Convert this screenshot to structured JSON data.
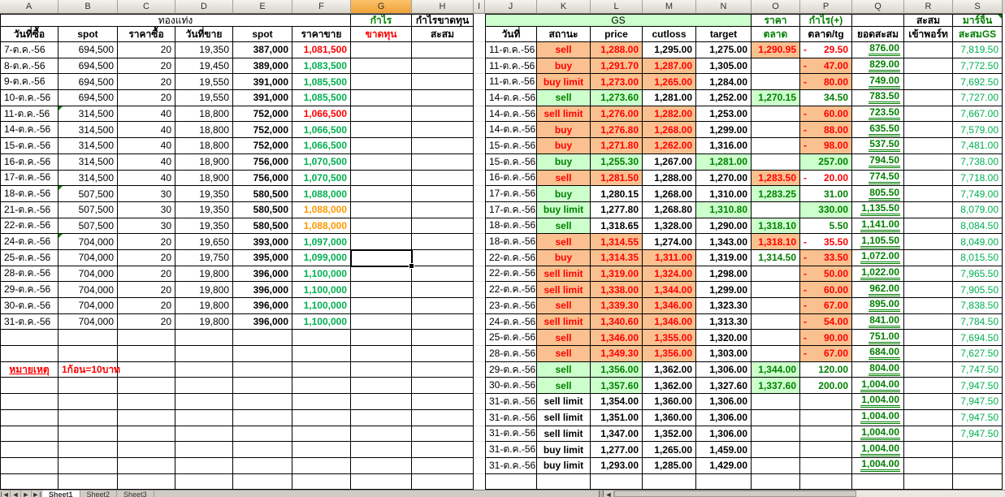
{
  "colors": {
    "cell_orange_bg": "#FAC08F",
    "cell_green_bg": "#CCFFCC",
    "red_text": "#FF0000",
    "dark_green_text": "#008000",
    "medium_green_text": "#00B050",
    "orange_text": "#FF9900",
    "column_header_bg": "#D9D5CD",
    "selected_column_header_bg": "#F2A340"
  },
  "columns": [
    "A",
    "B",
    "C",
    "D",
    "E",
    "F",
    "G",
    "H",
    "I",
    "J",
    "K",
    "L",
    "M",
    "N",
    "O",
    "P",
    "Q",
    "R",
    "S"
  ],
  "selection": {
    "column": "G",
    "row_index": 13
  },
  "header": {
    "left_title": "ทองแท่ง",
    "left_cols": [
      "วันที่ซื้อ",
      "spot",
      "ราคาซื้อ",
      "วันที่ขาย",
      "spot",
      "ราคาขาย"
    ],
    "profit_col": {
      "line1": "กำไร",
      "line2": "ขาดทุน"
    },
    "profit_cum_col": {
      "line1": "กำไรขาดทุน",
      "line2": "สะสม"
    },
    "gs_title": "GS",
    "right_cols": [
      "วันที่",
      "สถานะ",
      "price",
      "cutloss",
      "target"
    ],
    "market_col": {
      "line1": "ราคา",
      "line2": "ตลาด"
    },
    "profit_plus_col": {
      "line1": "กำไร(+)",
      "line2": "ตลาด/tg"
    },
    "cum_col": {
      "line1": "",
      "line2": "ยอดสะสม"
    },
    "port_col": {
      "line1": "สะสม",
      "line2": "เข้าพอร์ท"
    },
    "margin_col": {
      "line1": "มาร์จิ้น",
      "line2": "สะสมGS"
    }
  },
  "note": {
    "label": "หมายเหตุ",
    "text": "1ก้อน=10บาท"
  },
  "left_rows": [
    {
      "a": "7-ต.ค.-56",
      "b": "694,500",
      "c": "20",
      "d": "19,350",
      "e": "387,000",
      "f": "1,081,500",
      "fc": "red",
      "flag": false
    },
    {
      "a": "8-ต.ค.-56",
      "b": "694,500",
      "c": "20",
      "d": "19,450",
      "e": "389,000",
      "f": "1,083,500",
      "fc": "green",
      "flag": false
    },
    {
      "a": "9-ต.ค.-56",
      "b": "694,500",
      "c": "20",
      "d": "19,550",
      "e": "391,000",
      "f": "1,085,500",
      "fc": "green",
      "flag": false
    },
    {
      "a": "10-ต.ค.-56",
      "b": "694,500",
      "c": "20",
      "d": "19,550",
      "e": "391,000",
      "f": "1,085,500",
      "fc": "green",
      "flag": false
    },
    {
      "a": "11-ต.ค.-56",
      "b": "314,500",
      "c": "40",
      "d": "18,800",
      "e": "752,000",
      "f": "1,066,500",
      "fc": "red",
      "flag": true
    },
    {
      "a": "14-ต.ค.-56",
      "b": "314,500",
      "c": "40",
      "d": "18,800",
      "e": "752,000",
      "f": "1,066,500",
      "fc": "green",
      "flag": false
    },
    {
      "a": "15-ต.ค.-56",
      "b": "314,500",
      "c": "40",
      "d": "18,800",
      "e": "752,000",
      "f": "1,066,500",
      "fc": "green",
      "flag": false
    },
    {
      "a": "16-ต.ค.-56",
      "b": "314,500",
      "c": "40",
      "d": "18,900",
      "e": "756,000",
      "f": "1,070,500",
      "fc": "green",
      "flag": false
    },
    {
      "a": "17-ต.ค.-56",
      "b": "314,500",
      "c": "40",
      "d": "18,900",
      "e": "756,000",
      "f": "1,070,500",
      "fc": "green",
      "flag": false
    },
    {
      "a": "18-ต.ค.-56",
      "b": "507,500",
      "c": "30",
      "d": "19,350",
      "e": "580,500",
      "f": "1,088,000",
      "fc": "green",
      "flag": true
    },
    {
      "a": "21-ต.ค.-56",
      "b": "507,500",
      "c": "30",
      "d": "19,350",
      "e": "580,500",
      "f": "1,088,000",
      "fc": "orange",
      "flag": false
    },
    {
      "a": "22-ต.ค.-56",
      "b": "507,500",
      "c": "30",
      "d": "19,350",
      "e": "580,500",
      "f": "1,088,000",
      "fc": "orange",
      "flag": false
    },
    {
      "a": "24-ต.ค.-56",
      "b": "704,000",
      "c": "20",
      "d": "19,650",
      "e": "393,000",
      "f": "1,097,000",
      "fc": "green",
      "flag": true
    },
    {
      "a": "25-ต.ค.-56",
      "b": "704,000",
      "c": "20",
      "d": "19,750",
      "e": "395,000",
      "f": "1,099,000",
      "fc": "green",
      "flag": false
    },
    {
      "a": "28-ต.ค.-56",
      "b": "704,000",
      "c": "20",
      "d": "19,800",
      "e": "396,000",
      "f": "1,100,000",
      "fc": "green",
      "flag": false
    },
    {
      "a": "29-ต.ค.-56",
      "b": "704,000",
      "c": "20",
      "d": "19,800",
      "e": "396,000",
      "f": "1,100,000",
      "fc": "green",
      "flag": false
    },
    {
      "a": "30-ต.ค.-56",
      "b": "704,000",
      "c": "20",
      "d": "19,800",
      "e": "396,000",
      "f": "1,100,000",
      "fc": "green",
      "flag": false
    },
    {
      "a": "31-ต.ค.-56",
      "b": "704,000",
      "c": "20",
      "d": "19,800",
      "e": "396,000",
      "f": "1,100,000",
      "fc": "green",
      "flag": false
    }
  ],
  "right_rows": [
    {
      "d": "11-ต.ค.-56",
      "st": "sell",
      "sts": "ro",
      "p": "1,288.00",
      "ps": "ro",
      "c": "1,295.00",
      "cs": "k",
      "t": "1,275.00",
      "ts": "k",
      "m": "1,290.95",
      "ms": "ro",
      "pl": "29.50",
      "pln": true,
      "pls": "rw",
      "q": "876.00",
      "s": "7,819.50"
    },
    {
      "d": "11-ต.ค.-56",
      "st": "buy",
      "sts": "ro",
      "p": "1,291.70",
      "ps": "ro",
      "c": "1,287.00",
      "cs": "ro",
      "t": "1,305.00",
      "ts": "k",
      "m": "",
      "ms": "",
      "pl": "47.00",
      "pln": true,
      "pls": "ro",
      "q": "829.00",
      "s": "7,772.50"
    },
    {
      "d": "11-ต.ค.-56",
      "st": "buy limit",
      "sts": "ro",
      "p": "1,273.00",
      "ps": "ro",
      "c": "1,265.00",
      "cs": "ro",
      "t": "1,284.00",
      "ts": "k",
      "m": "",
      "ms": "",
      "pl": "80.00",
      "pln": true,
      "pls": "ro",
      "q": "749.00",
      "s": "7,692.50"
    },
    {
      "d": "14-ต.ค.-56",
      "st": "sell",
      "sts": "gg",
      "p": "1,273.60",
      "ps": "gg",
      "c": "1,281.00",
      "cs": "k",
      "t": "1,252.00",
      "ts": "k",
      "m": "1,270.15",
      "ms": "gg",
      "pl": "34.50",
      "pln": false,
      "pls": "gw",
      "q": "783.50",
      "s": "7,727.00"
    },
    {
      "d": "14-ต.ค.-56",
      "st": "sell limit",
      "sts": "ro",
      "p": "1,276.00",
      "ps": "ro",
      "c": "1,282.00",
      "cs": "ro",
      "t": "1,253.00",
      "ts": "k",
      "m": "",
      "ms": "",
      "pl": "60.00",
      "pln": true,
      "pls": "ro",
      "q": "723.50",
      "s": "7,667.00"
    },
    {
      "d": "14-ต.ค.-56",
      "st": "buy",
      "sts": "ro",
      "p": "1,276.80",
      "ps": "ro",
      "c": "1,268.00",
      "cs": "ro",
      "t": "1,299.00",
      "ts": "k",
      "m": "",
      "ms": "",
      "pl": "88.00",
      "pln": true,
      "pls": "ro",
      "q": "635.50",
      "s": "7,579.00"
    },
    {
      "d": "15-ต.ค.-56",
      "st": "buy",
      "sts": "ro",
      "p": "1,271.80",
      "ps": "ro",
      "c": "1,262.00",
      "cs": "ro",
      "t": "1,316.00",
      "ts": "k",
      "m": "",
      "ms": "",
      "pl": "98.00",
      "pln": true,
      "pls": "ro",
      "q": "537.50",
      "s": "7,481.00"
    },
    {
      "d": "15-ต.ค.-56",
      "st": "buy",
      "sts": "gg",
      "p": "1,255.30",
      "ps": "gg",
      "c": "1,267.00",
      "cs": "k",
      "t": "1,281.00",
      "ts": "gg",
      "m": "",
      "ms": "",
      "pl": "257.00",
      "pln": false,
      "pls": "gg",
      "q": "794.50",
      "s": "7,738.00"
    },
    {
      "d": "16-ต.ค.-56",
      "st": "sell",
      "sts": "ro",
      "p": "1,281.50",
      "ps": "ro",
      "c": "1,288.00",
      "cs": "k",
      "t": "1,270.00",
      "ts": "k",
      "m": "1,283.50",
      "ms": "ro",
      "pl": "20.00",
      "pln": true,
      "pls": "rw",
      "q": "774.50",
      "s": "7,718.00"
    },
    {
      "d": "17-ต.ค.-56",
      "st": "buy",
      "sts": "gg",
      "p": "1,280.15",
      "ps": "k",
      "c": "1,268.00",
      "cs": "k",
      "t": "1,310.00",
      "ts": "k",
      "m": "1,283.25",
      "ms": "gg",
      "pl": "31.00",
      "pln": false,
      "pls": "gw",
      "q": "805.50",
      "s": "7,749.00"
    },
    {
      "d": "17-ต.ค.-56",
      "st": "buy limit",
      "sts": "gg",
      "p": "1,277.80",
      "ps": "k",
      "c": "1,268.80",
      "cs": "k",
      "t": "1,310.80",
      "ts": "gg",
      "m": "",
      "ms": "",
      "pl": "330.00",
      "pln": false,
      "pls": "gg",
      "q": "1,135.50",
      "s": "8,079.00"
    },
    {
      "d": "18-ต.ค.-56",
      "st": "sell",
      "sts": "gg",
      "p": "1,318.65",
      "ps": "k",
      "c": "1,328.00",
      "cs": "k",
      "t": "1,290.00",
      "ts": "k",
      "m": "1,318.10",
      "ms": "gg",
      "pl": "5.50",
      "pln": false,
      "pls": "gw",
      "q": "1,141.00",
      "s": "8,084.50"
    },
    {
      "d": "18-ต.ค.-56",
      "st": "sell",
      "sts": "ro",
      "p": "1,314.55",
      "ps": "ro",
      "c": "1,274.00",
      "cs": "k",
      "t": "1,343.00",
      "ts": "k",
      "m": "1,318.10",
      "ms": "ro",
      "pl": "35.50",
      "pln": true,
      "pls": "rw",
      "q": "1,105.50",
      "s": "8,049.00"
    },
    {
      "d": "22-ต.ค.-56",
      "st": "buy",
      "sts": "ro",
      "p": "1,314.35",
      "ps": "ro",
      "c": "1,311.00",
      "cs": "ro",
      "t": "1,319.00",
      "ts": "k",
      "m": "1,314.50",
      "ms": "gw",
      "pl": "33.50",
      "pln": true,
      "pls": "ro",
      "q": "1,072.00",
      "s": "8,015.50"
    },
    {
      "d": "22-ต.ค.-56",
      "st": "sell limit",
      "sts": "ro",
      "p": "1,319.00",
      "ps": "ro",
      "c": "1,324.00",
      "cs": "ro",
      "t": "1,298.00",
      "ts": "k",
      "m": "",
      "ms": "",
      "pl": "50.00",
      "pln": true,
      "pls": "ro",
      "q": "1,022.00",
      "s": "7,965.50"
    },
    {
      "d": "22-ต.ค.-56",
      "st": "sell limit",
      "sts": "ro",
      "p": "1,338.00",
      "ps": "ro",
      "c": "1,344.00",
      "cs": "ro",
      "t": "1,299.00",
      "ts": "k",
      "m": "",
      "ms": "",
      "pl": "60.00",
      "pln": true,
      "pls": "ro",
      "q": "962.00",
      "s": "7,905.50"
    },
    {
      "d": "23-ต.ค.-56",
      "st": "sell",
      "sts": "ro",
      "p": "1,339.30",
      "ps": "ro",
      "c": "1,346.00",
      "cs": "ro",
      "t": "1,323.30",
      "ts": "k",
      "m": "",
      "ms": "",
      "pl": "67.00",
      "pln": true,
      "pls": "ro",
      "q": "895.00",
      "s": "7,838.50"
    },
    {
      "d": "24-ต.ค.-56",
      "st": "sell limit",
      "sts": "ro",
      "p": "1,340.60",
      "ps": "ro",
      "c": "1,346.00",
      "cs": "ro",
      "t": "1,313.30",
      "ts": "k",
      "m": "",
      "ms": "",
      "pl": "54.00",
      "pln": true,
      "pls": "ro",
      "q": "841.00",
      "s": "7,784.50"
    },
    {
      "d": "25-ต.ค.-56",
      "st": "sell",
      "sts": "ro",
      "p": "1,346.00",
      "ps": "ro",
      "c": "1,355.00",
      "cs": "ro",
      "t": "1,320.00",
      "ts": "k",
      "m": "",
      "ms": "",
      "pl": "90.00",
      "pln": true,
      "pls": "ro",
      "q": "751.00",
      "s": "7,694.50"
    },
    {
      "d": "28-ต.ค.-56",
      "st": "sell",
      "sts": "ro",
      "p": "1,349.30",
      "ps": "ro",
      "c": "1,356.00",
      "cs": "ro",
      "t": "1,303.00",
      "ts": "k",
      "m": "",
      "ms": "",
      "pl": "67.00",
      "pln": true,
      "pls": "ro",
      "q": "684.00",
      "s": "7,627.50"
    },
    {
      "d": "29-ต.ค.-56",
      "st": "sell",
      "sts": "gg",
      "p": "1,356.00",
      "ps": "gg",
      "c": "1,362.00",
      "cs": "k",
      "t": "1,306.00",
      "ts": "k",
      "m": "1,344.00",
      "ms": "gg",
      "pl": "120.00",
      "pln": false,
      "pls": "gw",
      "q": "804.00",
      "s": "7,747.50"
    },
    {
      "d": "30-ต.ค.-56",
      "st": "sell",
      "sts": "gg",
      "p": "1,357.60",
      "ps": "gg",
      "c": "1,362.00",
      "cs": "k",
      "t": "1,327.60",
      "ts": "k",
      "m": "1,337.60",
      "ms": "gg",
      "pl": "200.00",
      "pln": false,
      "pls": "gw",
      "q": "1,004.00",
      "s": "7,947.50"
    },
    {
      "d": "31-ต.ค.-56",
      "st": "sell limit",
      "sts": "k",
      "p": "1,354.00",
      "ps": "k",
      "c": "1,360.00",
      "cs": "k",
      "t": "1,306.00",
      "ts": "k",
      "m": "",
      "ms": "",
      "pl": "",
      "pln": false,
      "pls": "",
      "q": "1,004.00",
      "s": "7,947.50"
    },
    {
      "d": "31-ต.ค.-56",
      "st": "sell limit",
      "sts": "k",
      "p": "1,351.00",
      "ps": "k",
      "c": "1,360.00",
      "cs": "k",
      "t": "1,306.00",
      "ts": "k",
      "m": "",
      "ms": "",
      "pl": "",
      "pln": false,
      "pls": "",
      "q": "1,004.00",
      "s": "7,947.50"
    },
    {
      "d": "31-ต.ค.-56",
      "st": "sell limit",
      "sts": "k",
      "p": "1,347.00",
      "ps": "k",
      "c": "1,352.00",
      "cs": "k",
      "t": "1,306.00",
      "ts": "k",
      "m": "",
      "ms": "",
      "pl": "",
      "pln": false,
      "pls": "",
      "q": "1,004.00",
      "s": "7,947.50"
    },
    {
      "d": "31-ต.ค.-56",
      "st": "buy limit",
      "sts": "k",
      "p": "1,277.00",
      "ps": "k",
      "c": "1,265.00",
      "cs": "k",
      "t": "1,459.00",
      "ts": "k",
      "m": "",
      "ms": "",
      "pl": "",
      "pln": false,
      "pls": "",
      "q": "1,004.00",
      "s": ""
    },
    {
      "d": "31-ต.ค.-56",
      "st": "buy limit",
      "sts": "k",
      "p": "1,293.00",
      "ps": "k",
      "c": "1,285.00",
      "cs": "k",
      "t": "1,429.00",
      "ts": "k",
      "m": "",
      "ms": "",
      "pl": "",
      "pln": false,
      "pls": "",
      "q": "1,004.00",
      "s": ""
    }
  ],
  "tabbar": {
    "nav": [
      "|◄",
      "◄",
      "►",
      "►|"
    ],
    "tabs": [
      "Sheet1",
      "Sheet2",
      "Sheet3"
    ],
    "active": "Sheet1",
    "scroll_left": "◄"
  }
}
